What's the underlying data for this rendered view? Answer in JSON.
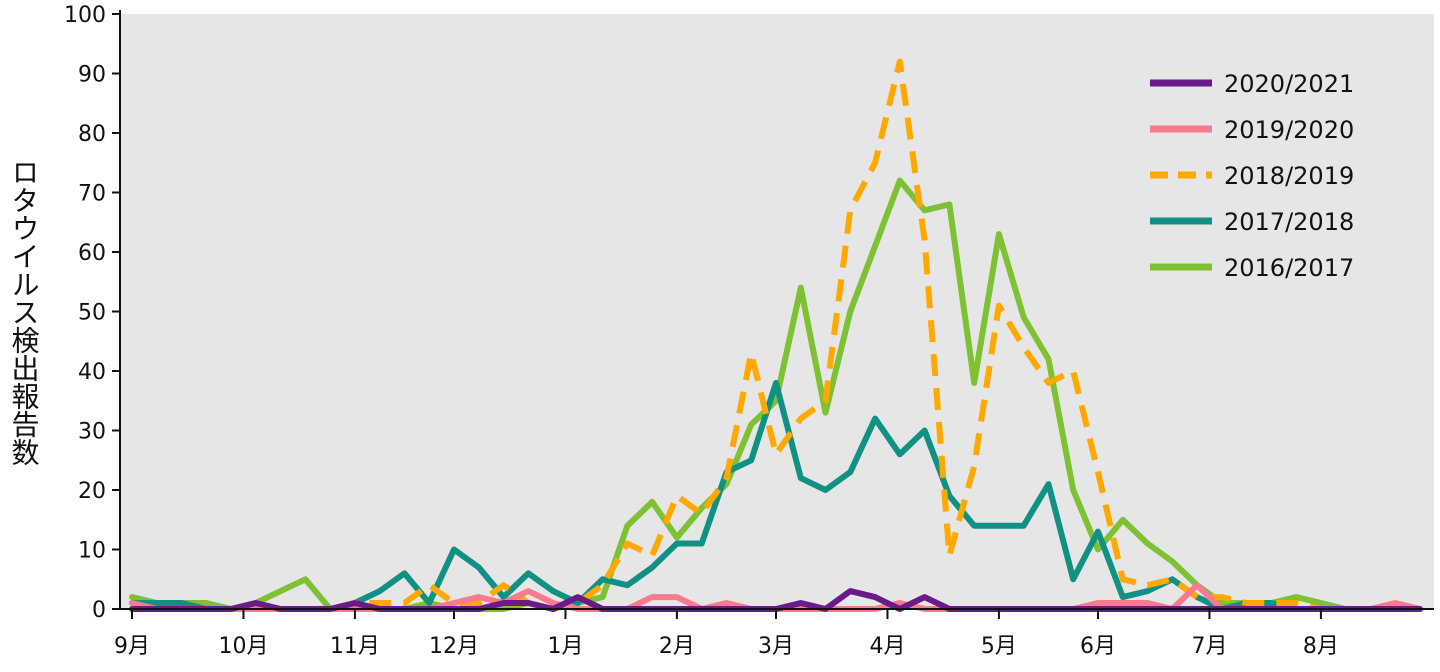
{
  "chart_data": {
    "type": "line",
    "title": "",
    "xlabel": "",
    "ylabel": "ロタウイルス検出報告数",
    "ylim": [
      0,
      100
    ],
    "yticks": [
      0,
      10,
      20,
      30,
      40,
      50,
      60,
      70,
      80,
      90,
      100
    ],
    "xlim": [
      0,
      52
    ],
    "months": [
      {
        "label": "9月",
        "x": 0
      },
      {
        "label": "10月",
        "x": 4.5
      },
      {
        "label": "11月",
        "x": 9
      },
      {
        "label": "12月",
        "x": 13
      },
      {
        "label": "1月",
        "x": 17.5
      },
      {
        "label": "2月",
        "x": 22
      },
      {
        "label": "3月",
        "x": 26
      },
      {
        "label": "4月",
        "x": 30.5
      },
      {
        "label": "5月",
        "x": 35
      },
      {
        "label": "6月",
        "x": 39
      },
      {
        "label": "7月",
        "x": 43.5
      },
      {
        "label": "8月",
        "x": 48
      }
    ],
    "grid": false,
    "legend_position": "top-right",
    "series": [
      {
        "name": "2020/2021",
        "color": "#6a1b8a",
        "dashed": false,
        "values": [
          0,
          0,
          0,
          0,
          0,
          1,
          0,
          0,
          0,
          1,
          0,
          0,
          0,
          0,
          0,
          1,
          1,
          0,
          2,
          0,
          0,
          0,
          0,
          0,
          0,
          0,
          0,
          1,
          0,
          3,
          2,
          0,
          2,
          0,
          0,
          0,
          0,
          0,
          0,
          0,
          0,
          0,
          0,
          0,
          0,
          0,
          0,
          0,
          0,
          0,
          0,
          0,
          0
        ]
      },
      {
        "name": "2019/2020",
        "color": "#f87a8c",
        "dashed": false,
        "values": [
          1,
          0,
          0,
          0,
          0,
          0,
          0,
          0,
          0,
          0,
          0,
          0,
          0,
          1,
          2,
          1,
          3,
          1,
          0,
          0,
          0,
          2,
          2,
          0,
          1,
          0,
          0,
          0,
          0,
          0,
          0,
          1,
          0,
          0,
          0,
          0,
          0,
          0,
          0,
          1,
          1,
          1,
          0,
          4,
          0,
          0,
          0,
          0,
          0,
          0,
          0,
          1,
          0
        ]
      },
      {
        "name": "2018/2019",
        "color": "#ffa800",
        "dashed": true,
        "values": [
          0,
          0,
          0,
          0,
          0,
          0,
          0,
          0,
          0,
          1,
          1,
          1,
          4,
          1,
          1,
          4,
          1,
          0,
          1,
          4,
          11,
          9,
          19,
          16,
          22,
          43,
          26,
          32,
          35,
          67,
          75,
          92,
          62,
          9,
          24,
          51,
          44,
          38,
          40,
          23,
          5,
          4,
          5,
          2,
          2,
          1,
          1,
          1,
          0,
          0,
          0,
          0,
          0
        ]
      },
      {
        "name": "2017/2018",
        "color": "#119184",
        "dashed": false,
        "values": [
          1,
          1,
          1,
          0,
          0,
          0,
          0,
          0,
          0,
          1,
          3,
          6,
          1,
          10,
          7,
          2,
          6,
          3,
          1,
          5,
          4,
          7,
          11,
          11,
          23,
          25,
          38,
          22,
          20,
          23,
          32,
          26,
          30,
          19,
          14,
          14,
          14,
          21,
          5,
          13,
          2,
          3,
          5,
          2,
          0,
          1,
          1,
          0,
          0,
          0,
          0,
          0,
          0
        ]
      },
      {
        "name": "2016/2017",
        "color": "#7ec132",
        "dashed": false,
        "values": [
          2,
          1,
          1,
          1,
          0,
          1,
          3,
          5,
          0,
          0,
          0,
          0,
          1,
          0,
          0,
          0,
          1,
          0,
          1,
          2,
          14,
          18,
          12,
          17,
          21,
          31,
          35,
          54,
          33,
          50,
          61,
          72,
          67,
          68,
          38,
          63,
          49,
          42,
          20,
          10,
          15,
          11,
          8,
          4,
          1,
          1,
          1,
          2,
          1,
          0,
          0,
          0,
          0
        ]
      }
    ]
  }
}
